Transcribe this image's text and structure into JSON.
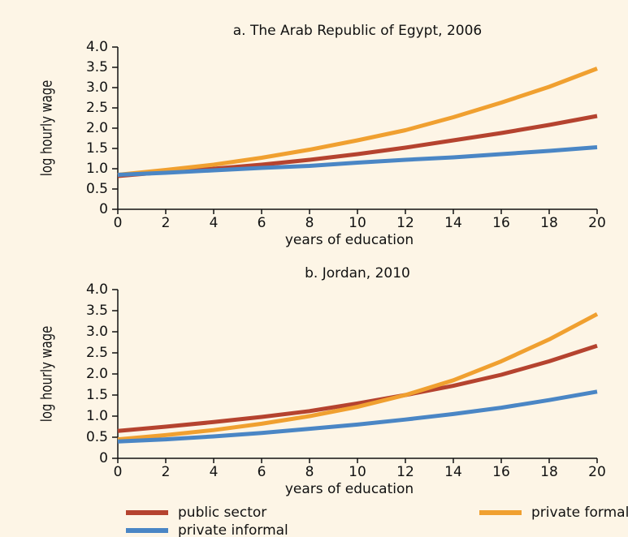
{
  "chart_data": [
    {
      "type": "line",
      "title": "a. The Arab Republic of Egypt, 2006",
      "x_label": "years of education",
      "y_label": "log hourly wage",
      "x": [
        0,
        2,
        4,
        6,
        8,
        10,
        12,
        14,
        16,
        18,
        20
      ],
      "series": [
        {
          "name": "public sector",
          "color": "#b5432f",
          "values": [
            0.82,
            0.92,
            1.0,
            1.1,
            1.22,
            1.36,
            1.52,
            1.7,
            1.88,
            2.08,
            2.3
          ]
        },
        {
          "name": "private formal",
          "color": "#f0a030",
          "values": [
            0.85,
            0.97,
            1.1,
            1.27,
            1.47,
            1.7,
            1.95,
            2.27,
            2.63,
            3.02,
            3.47
          ]
        },
        {
          "name": "private informal",
          "color": "#4a86c5",
          "values": [
            0.85,
            0.9,
            0.96,
            1.02,
            1.07,
            1.15,
            1.22,
            1.28,
            1.36,
            1.44,
            1.53
          ]
        }
      ],
      "xlim": [
        0,
        20
      ],
      "xticks": [
        0,
        2,
        4,
        6,
        8,
        10,
        12,
        14,
        16,
        18,
        20
      ],
      "ylim": [
        0,
        4
      ],
      "yticks": [
        0,
        0.5,
        {
          "value": 1,
          "label": "1.0"
        },
        1.5,
        {
          "value": 2,
          "label": "2.0"
        },
        2.5,
        {
          "value": 3,
          "label": "3.0"
        },
        3.5,
        {
          "value": 4,
          "label": "4.0"
        }
      ]
    },
    {
      "type": "line",
      "title": "b. Jordan, 2010",
      "x_label": "years of education",
      "y_label": "log hourly wage",
      "x": [
        0,
        2,
        4,
        6,
        8,
        10,
        12,
        14,
        16,
        18,
        20
      ],
      "series": [
        {
          "name": "public sector",
          "color": "#b5432f",
          "values": [
            0.65,
            0.75,
            0.86,
            0.98,
            1.12,
            1.3,
            1.5,
            1.72,
            1.98,
            2.3,
            2.67
          ]
        },
        {
          "name": "private formal",
          "color": "#f0a030",
          "values": [
            0.45,
            0.55,
            0.67,
            0.82,
            1.0,
            1.22,
            1.5,
            1.85,
            2.3,
            2.82,
            3.42
          ]
        },
        {
          "name": "private informal",
          "color": "#4a86c5",
          "values": [
            0.4,
            0.45,
            0.52,
            0.6,
            0.7,
            0.8,
            0.92,
            1.05,
            1.2,
            1.38,
            1.58
          ]
        }
      ],
      "xlim": [
        0,
        20
      ],
      "xticks": [
        0,
        2,
        4,
        6,
        8,
        10,
        12,
        14,
        16,
        18,
        20
      ],
      "ylim": [
        0,
        4
      ],
      "yticks": [
        0,
        0.5,
        {
          "value": 1,
          "label": "1.0"
        },
        1.5,
        {
          "value": 2,
          "label": "2.0"
        },
        2.5,
        {
          "value": 3,
          "label": "3.0"
        },
        3.5,
        {
          "value": 4,
          "label": "4.0"
        }
      ]
    }
  ]
}
